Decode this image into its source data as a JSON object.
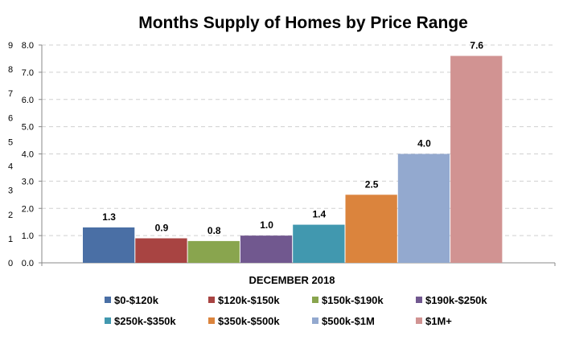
{
  "chart_data": {
    "type": "bar",
    "title": "Months Supply of Homes by Price Range",
    "xlabel": "DECEMBER 2018",
    "ylabel": "",
    "ylim": [
      0,
      8
    ],
    "yticks": [
      "0.0",
      "1.0",
      "2.0",
      "3.0",
      "4.0",
      "5.0",
      "6.0",
      "7.0",
      "8.0"
    ],
    "secondary_yticks": [
      "0",
      "1",
      "2",
      "3",
      "4",
      "5",
      "6",
      "7",
      "8",
      "9"
    ],
    "grid": true,
    "legend_position": "bottom",
    "categories": [
      "DECEMBER 2018"
    ],
    "series": [
      {
        "name": "$0-$120k",
        "values": [
          1.3
        ],
        "label": "1.3",
        "color": "#4a6fa5"
      },
      {
        "name": "$120k-$150k",
        "values": [
          0.9
        ],
        "label": "0.9",
        "color": "#a84442"
      },
      {
        "name": "$150k-$190k",
        "values": [
          0.8
        ],
        "label": "0.8",
        "color": "#89a54e"
      },
      {
        "name": "$190k-$250k",
        "values": [
          1.0
        ],
        "label": "1.0",
        "color": "#71588f"
      },
      {
        "name": "$250k-$350k",
        "values": [
          1.4
        ],
        "label": "1.4",
        "color": "#4198af"
      },
      {
        "name": "$350k-$500k",
        "values": [
          2.5
        ],
        "label": "2.5",
        "color": "#db843d"
      },
      {
        "name": "$500k-$1M",
        "values": [
          4.0
        ],
        "label": "4.0",
        "color": "#93a9cf"
      },
      {
        "name": "$1M+",
        "values": [
          7.6
        ],
        "label": "7.6",
        "color": "#d19392"
      }
    ]
  }
}
